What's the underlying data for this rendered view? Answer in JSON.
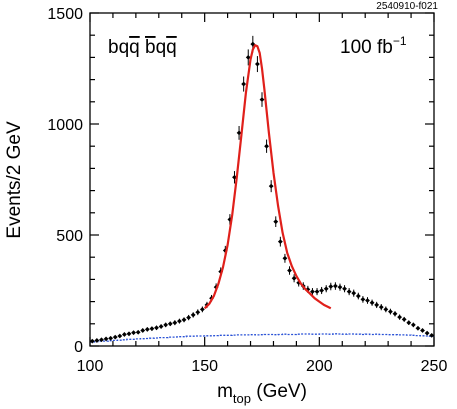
{
  "figure_id": "2540910-f021",
  "chart_data": {
    "type": "scatter",
    "title": "",
    "xlabel": "m",
    "xlabel_sub": "top",
    "xlabel_unit": " (GeV)",
    "ylabel": "Events/2 GeV",
    "xlim": [
      100,
      250
    ],
    "ylim": [
      0,
      1500
    ],
    "xticks": [
      100,
      150,
      200,
      250
    ],
    "yticks": [
      0,
      500,
      1000,
      1500
    ],
    "grid": false,
    "annotations": {
      "channel_left": "bq",
      "channel_qbar": "q",
      "channel_space": " ",
      "channel_bbar": "b",
      "channel_right": "q",
      "channel_qbar2": "q",
      "luminosity": "100 fb",
      "luminosity_exp": "−1"
    },
    "series": [
      {
        "role": "data-points-with-errors",
        "color": "#000000",
        "x": [
          101,
          103,
          105,
          107,
          109,
          111,
          113,
          115,
          117,
          119,
          121,
          123,
          125,
          127,
          129,
          131,
          133,
          135,
          137,
          139,
          141,
          143,
          145,
          147,
          149,
          151,
          153,
          155,
          157,
          159,
          161,
          163,
          165,
          167,
          169,
          171,
          173,
          175,
          177,
          179,
          181,
          183,
          185,
          187,
          189,
          191,
          193,
          195,
          197,
          199,
          201,
          203,
          205,
          207,
          209,
          211,
          213,
          215,
          217,
          219,
          221,
          223,
          225,
          227,
          229,
          231,
          233,
          235,
          237,
          239,
          241,
          243,
          245,
          247,
          249
        ],
        "y": [
          22,
          25,
          28,
          32,
          35,
          40,
          45,
          52,
          55,
          60,
          62,
          70,
          75,
          78,
          82,
          88,
          95,
          100,
          105,
          112,
          118,
          128,
          140,
          152,
          165,
          185,
          215,
          265,
          335,
          430,
          570,
          760,
          960,
          1180,
          1300,
          1360,
          1270,
          1110,
          900,
          720,
          560,
          470,
          395,
          340,
          305,
          285,
          270,
          255,
          245,
          245,
          250,
          258,
          268,
          270,
          265,
          258,
          245,
          238,
          225,
          210,
          205,
          195,
          185,
          175,
          165,
          155,
          145,
          130,
          120,
          105,
          95,
          80,
          70,
          58,
          48
        ],
        "yerr": [
          5,
          5,
          6,
          6,
          6,
          7,
          7,
          8,
          8,
          8,
          8,
          9,
          9,
          9,
          10,
          10,
          10,
          10,
          11,
          11,
          11,
          12,
          12,
          13,
          13,
          14,
          15,
          17,
          19,
          21,
          24,
          28,
          31,
          34,
          36,
          37,
          36,
          33,
          30,
          27,
          24,
          22,
          20,
          19,
          18,
          17,
          17,
          16,
          16,
          16,
          16,
          16,
          17,
          17,
          16,
          16,
          16,
          16,
          15,
          15,
          15,
          14,
          14,
          14,
          13,
          13,
          12,
          12,
          11,
          10,
          10,
          9,
          8,
          8,
          7
        ]
      },
      {
        "role": "fit-curve",
        "color": "#e0201b",
        "x": [
          150,
          152,
          154,
          156,
          158,
          160,
          162,
          164,
          166,
          168,
          170,
          171,
          172,
          173,
          174,
          175,
          176,
          177,
          178,
          180,
          182,
          184,
          186,
          188,
          190,
          192,
          194,
          196,
          198,
          200,
          202,
          204,
          205
        ],
        "y": [
          170,
          190,
          225,
          280,
          355,
          455,
          590,
          760,
          950,
          1140,
          1290,
          1335,
          1355,
          1350,
          1320,
          1250,
          1160,
          1060,
          960,
          780,
          630,
          510,
          420,
          360,
          315,
          280,
          255,
          235,
          215,
          200,
          185,
          175,
          170
        ]
      },
      {
        "role": "background-histogram",
        "color": "#2a52d6",
        "x": [
          100,
          102,
          104,
          106,
          108,
          110,
          112,
          114,
          116,
          118,
          120,
          122,
          124,
          126,
          128,
          130,
          132,
          134,
          136,
          138,
          140,
          142,
          144,
          146,
          148,
          150,
          152,
          154,
          156,
          158,
          160,
          162,
          164,
          166,
          168,
          170,
          172,
          174,
          176,
          178,
          180,
          182,
          184,
          186,
          188,
          190,
          192,
          194,
          196,
          198,
          200,
          202,
          204,
          206,
          208,
          210,
          212,
          214,
          216,
          218,
          220,
          222,
          224,
          226,
          228,
          230,
          232,
          234,
          236,
          238,
          240,
          242,
          244,
          246,
          248
        ],
        "y": [
          18,
          20,
          22,
          22,
          24,
          25,
          26,
          28,
          30,
          30,
          32,
          33,
          34,
          35,
          36,
          38,
          38,
          40,
          40,
          42,
          42,
          44,
          44,
          45,
          45,
          46,
          46,
          47,
          48,
          48,
          48,
          49,
          50,
          50,
          50,
          51,
          50,
          51,
          52,
          52,
          51,
          52,
          53,
          52,
          52,
          53,
          54,
          54,
          53,
          53,
          54,
          54,
          53,
          55,
          54,
          53,
          54,
          54,
          53,
          52,
          53,
          52,
          53,
          52,
          52,
          51,
          51,
          50,
          50,
          49,
          48,
          47,
          46,
          45,
          44
        ]
      }
    ]
  }
}
